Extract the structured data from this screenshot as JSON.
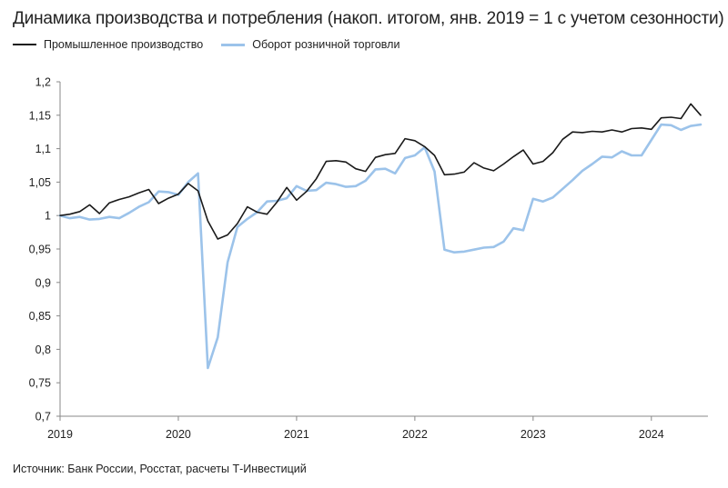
{
  "title": "Динамика производства и потребления (накоп. итогом, янв. 2019 = 1 с учетом сезонности)",
  "source": "Источник: Банк России, Росстат, расчеты Т-Инвестиций",
  "chart_data": {
    "type": "line",
    "title": "Динамика производства и потребления (накоп. итогом, янв. 2019 = 1 с учетом сезонности)",
    "xlabel": "",
    "ylabel": "",
    "x_ticks": [
      "2019",
      "2020",
      "2021",
      "2022",
      "2023",
      "2024"
    ],
    "y_ticks": [
      "0,7",
      "0,75",
      "0,8",
      "0,85",
      "0,9",
      "0,95",
      "1",
      "1,05",
      "1,1",
      "1,15",
      "1,2"
    ],
    "ylim": [
      0.7,
      1.2
    ],
    "xlim": [
      "2019-01",
      "2024-06"
    ],
    "grid": false,
    "legend_position": "top-left",
    "x": [
      "2019-01",
      "2019-02",
      "2019-03",
      "2019-04",
      "2019-05",
      "2019-06",
      "2019-07",
      "2019-08",
      "2019-09",
      "2019-10",
      "2019-11",
      "2019-12",
      "2020-01",
      "2020-02",
      "2020-03",
      "2020-04",
      "2020-05",
      "2020-06",
      "2020-07",
      "2020-08",
      "2020-09",
      "2020-10",
      "2020-11",
      "2020-12",
      "2021-01",
      "2021-02",
      "2021-03",
      "2021-04",
      "2021-05",
      "2021-06",
      "2021-07",
      "2021-08",
      "2021-09",
      "2021-10",
      "2021-11",
      "2021-12",
      "2022-01",
      "2022-02",
      "2022-03",
      "2022-04",
      "2022-05",
      "2022-06",
      "2022-07",
      "2022-08",
      "2022-09",
      "2022-10",
      "2022-11",
      "2022-12",
      "2023-01",
      "2023-02",
      "2023-03",
      "2023-04",
      "2023-05",
      "2023-06",
      "2023-07",
      "2023-08",
      "2023-09",
      "2023-10",
      "2023-11",
      "2023-12",
      "2024-01",
      "2024-02",
      "2024-03",
      "2024-04",
      "2024-05",
      "2024-06"
    ],
    "series": [
      {
        "name": "Промышленное производство",
        "color": "#1a1a1a",
        "values": [
          1.0,
          1.002,
          1.006,
          1.016,
          1.003,
          1.019,
          1.024,
          1.028,
          1.034,
          1.039,
          1.018,
          1.026,
          1.032,
          1.048,
          1.037,
          0.992,
          0.965,
          0.971,
          0.988,
          1.013,
          1.005,
          1.002,
          1.02,
          1.042,
          1.023,
          1.036,
          1.055,
          1.081,
          1.082,
          1.08,
          1.07,
          1.066,
          1.087,
          1.091,
          1.093,
          1.115,
          1.112,
          1.103,
          1.09,
          1.061,
          1.062,
          1.065,
          1.079,
          1.071,
          1.067,
          1.077,
          1.088,
          1.098,
          1.077,
          1.081,
          1.094,
          1.114,
          1.125,
          1.124,
          1.126,
          1.125,
          1.128,
          1.125,
          1.13,
          1.131,
          1.129,
          1.146,
          1.147,
          1.145,
          1.167,
          1.15
        ]
      },
      {
        "name": "Оборот розничной торговли",
        "color": "#9cc3ea",
        "values": [
          1.0,
          0.996,
          0.998,
          0.994,
          0.995,
          0.998,
          0.996,
          1.004,
          1.013,
          1.02,
          1.036,
          1.035,
          1.031,
          1.05,
          1.063,
          0.772,
          0.818,
          0.93,
          0.983,
          0.995,
          1.005,
          1.021,
          1.022,
          1.026,
          1.044,
          1.037,
          1.038,
          1.049,
          1.047,
          1.043,
          1.044,
          1.052,
          1.069,
          1.07,
          1.063,
          1.086,
          1.09,
          1.102,
          1.066,
          0.949,
          0.945,
          0.946,
          0.949,
          0.952,
          0.953,
          0.961,
          0.981,
          0.978,
          1.025,
          1.021,
          1.027,
          1.04,
          1.053,
          1.067,
          1.077,
          1.088,
          1.087,
          1.096,
          1.09,
          1.09,
          1.113,
          1.136,
          1.135,
          1.128,
          1.134,
          1.136
        ]
      }
    ]
  }
}
